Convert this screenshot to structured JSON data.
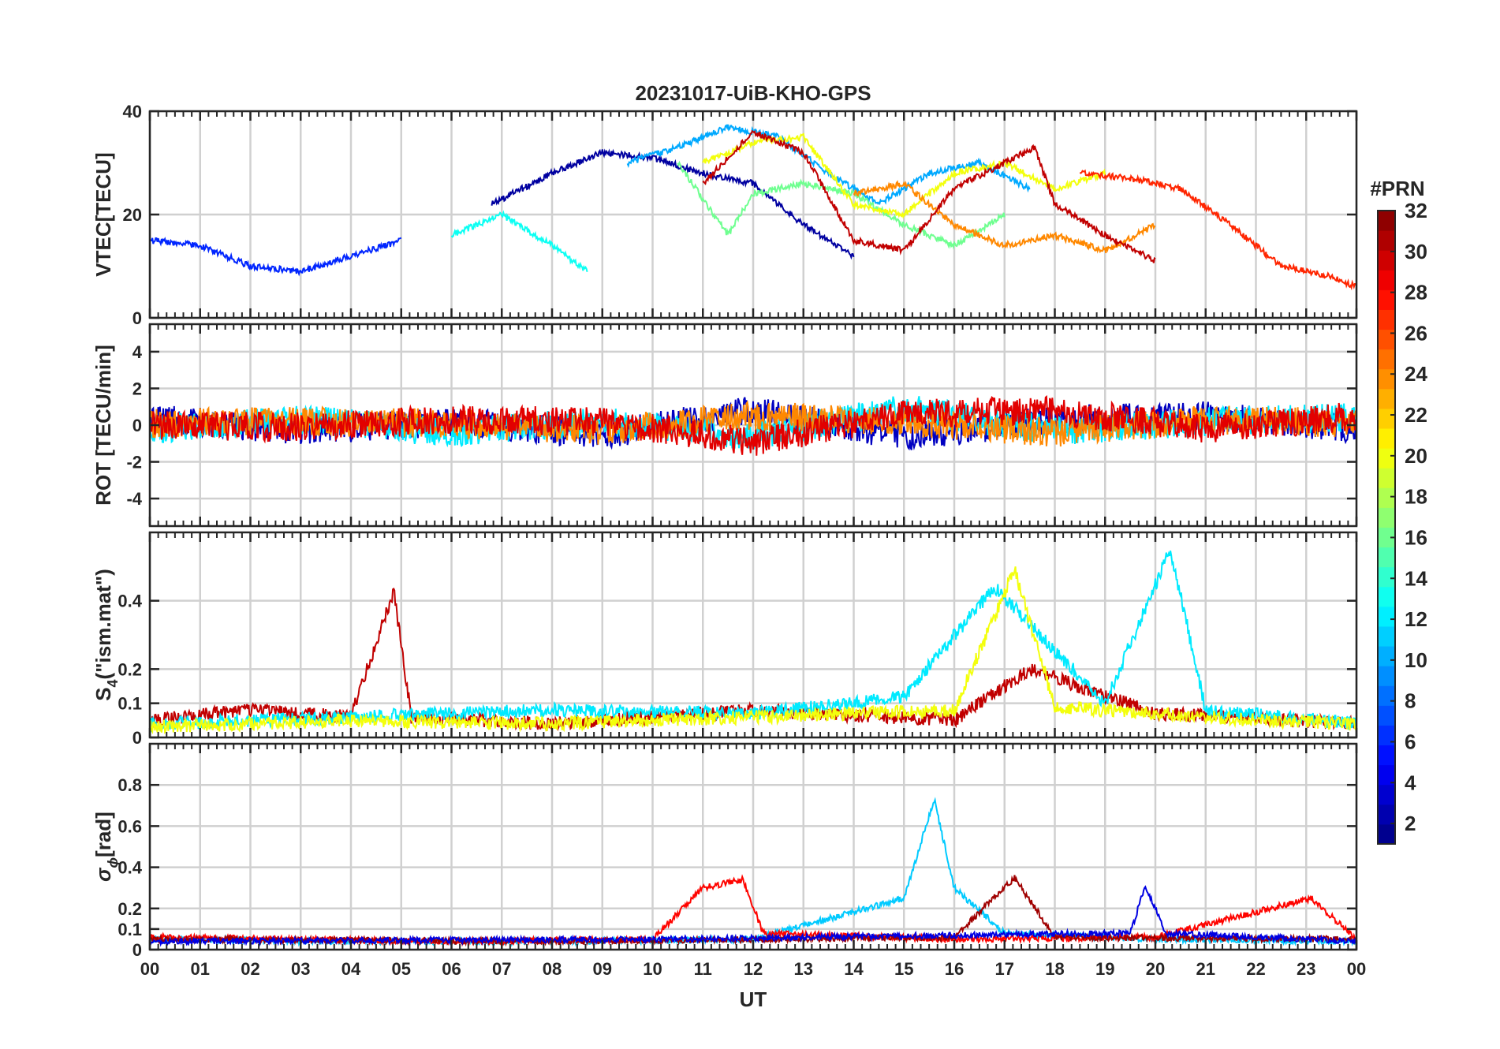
{
  "chart_data": [
    {
      "type": "line",
      "panel": "vtec",
      "title": "20231017-UiB-KHO-GPS",
      "xlabel": "",
      "ylabel": "VTEC[TECU]",
      "xlim": [
        0,
        24
      ],
      "ylim": [
        0,
        40
      ],
      "yticks": [
        0,
        20,
        40
      ],
      "tick_labels_y": [
        "0",
        "20",
        "40"
      ],
      "grid": true,
      "series": [
        {
          "name": "PRN 2",
          "prn": 2,
          "x": [
            6.8,
            8.0,
            9.0,
            10.0,
            11.0,
            12.0,
            13.0,
            14.0
          ],
          "values": [
            22,
            28,
            32,
            31,
            28,
            26,
            18,
            12
          ]
        },
        {
          "name": "PRN 6",
          "prn": 6,
          "x": [
            0.0,
            1.0,
            2.0,
            3.0,
            4.0,
            5.0
          ],
          "values": [
            15,
            14,
            10,
            9,
            12,
            15
          ]
        },
        {
          "name": "PRN 10",
          "prn": 10,
          "x": [
            9.5,
            10.5,
            11.5,
            12.5,
            13.5,
            14.5,
            15.5,
            16.5,
            17.5
          ],
          "values": [
            30,
            33,
            37,
            35,
            28,
            22,
            28,
            30,
            25
          ]
        },
        {
          "name": "PRN 13",
          "prn": 13,
          "x": [
            6.0,
            7.0,
            8.0,
            8.7
          ],
          "values": [
            16,
            20,
            14,
            9
          ]
        },
        {
          "name": "PRN 16",
          "prn": 16,
          "x": [
            10.5,
            11.5,
            12.0,
            13.0,
            14.0,
            15.0,
            16.0,
            17.0
          ],
          "values": [
            30,
            16,
            24,
            26,
            24,
            18,
            14,
            20
          ]
        },
        {
          "name": "PRN 20",
          "prn": 20,
          "x": [
            11.0,
            12.0,
            13.0,
            14.0,
            15.0,
            16.0,
            17.0,
            18.0,
            19.0
          ],
          "values": [
            30,
            34,
            35,
            22,
            20,
            28,
            30,
            25,
            28
          ]
        },
        {
          "name": "PRN 24",
          "prn": 24,
          "x": [
            14.0,
            15.0,
            16.0,
            17.0,
            18.0,
            19.0,
            20.0
          ],
          "values": [
            24,
            26,
            18,
            14,
            16,
            13,
            18
          ]
        },
        {
          "name": "PRN 27",
          "prn": 27,
          "x": [
            18.5,
            19.5,
            20.5,
            21.5,
            22.5,
            23.5,
            24.0
          ],
          "values": [
            28,
            27,
            25,
            18,
            10,
            8,
            6
          ]
        },
        {
          "name": "PRN 30",
          "prn": 30,
          "x": [
            11.0,
            12.0,
            13.0,
            14.0,
            15.0,
            16.0,
            17.0,
            17.6,
            18.0,
            19.0,
            20.0
          ],
          "values": [
            26,
            36,
            32,
            15,
            13,
            25,
            30,
            33,
            22,
            16,
            11
          ]
        }
      ]
    },
    {
      "type": "line",
      "panel": "rot",
      "xlabel": "",
      "ylabel": "ROT [TECU/min]",
      "xlim": [
        0,
        24
      ],
      "ylim": [
        -5.5,
        5.5
      ],
      "yticks": [
        -4,
        -2,
        0,
        2,
        4
      ],
      "tick_labels_y": [
        "-4",
        "-2",
        "0",
        "2",
        "4"
      ],
      "grid": true,
      "series": [
        {
          "name": "PRN 3",
          "prn": 3,
          "x": [
            0,
            3,
            6,
            9,
            12,
            15,
            18,
            21,
            24
          ],
          "values": [
            0.4,
            -0.3,
            0.2,
            -0.5,
            0.8,
            -0.6,
            0.3,
            0.5,
            -0.2
          ]
        },
        {
          "name": "PRN 12",
          "prn": 12,
          "x": [
            0,
            3,
            6,
            9,
            12,
            15,
            18,
            21,
            24
          ],
          "values": [
            -0.2,
            0.3,
            -0.4,
            0.2,
            -0.6,
            0.9,
            -0.3,
            0.2,
            0.4
          ]
        },
        {
          "name": "PRN 24",
          "prn": 24,
          "x": [
            0,
            3,
            6,
            9,
            12,
            15,
            18,
            21,
            24
          ],
          "values": [
            0.1,
            0.2,
            0.1,
            -0.3,
            0.5,
            0.2,
            -0.4,
            0.3,
            0.1
          ]
        },
        {
          "name": "PRN 29",
          "prn": 29,
          "x": [
            0,
            3,
            6,
            9,
            12,
            15,
            18,
            21,
            24
          ],
          "values": [
            0.0,
            -0.1,
            0.3,
            0.2,
            -0.9,
            0.6,
            0.8,
            -0.2,
            0.5
          ]
        }
      ]
    },
    {
      "type": "line",
      "panel": "s4",
      "xlabel": "",
      "ylabel": "S",
      "ylabel_subscript": "4",
      "ylabel_suffix": "(\"ism.mat\")",
      "xlim": [
        0,
        24
      ],
      "ylim": [
        0,
        0.6
      ],
      "yticks": [
        0,
        0.1,
        0.2,
        0.4
      ],
      "tick_labels_y": [
        "0",
        "0.1",
        "0.2",
        "0.4"
      ],
      "grid": true,
      "series": [
        {
          "name": "PRN 30",
          "prn": 30,
          "x": [
            0,
            2,
            4,
            4.85,
            5.2,
            8,
            12,
            16,
            17.5,
            20,
            24
          ],
          "values": [
            0.05,
            0.08,
            0.06,
            0.43,
            0.06,
            0.04,
            0.08,
            0.05,
            0.2,
            0.07,
            0.04
          ]
        },
        {
          "name": "PRN 12",
          "prn": 12,
          "x": [
            0,
            4,
            8,
            12,
            15,
            16.8,
            19,
            20.3,
            21,
            24
          ],
          "values": [
            0.04,
            0.06,
            0.08,
            0.07,
            0.12,
            0.44,
            0.1,
            0.55,
            0.08,
            0.04
          ]
        },
        {
          "name": "PRN 20",
          "prn": 20,
          "x": [
            0,
            4,
            8,
            12,
            16,
            17.2,
            18,
            22,
            24
          ],
          "values": [
            0.03,
            0.05,
            0.04,
            0.06,
            0.08,
            0.49,
            0.09,
            0.05,
            0.04
          ]
        }
      ]
    },
    {
      "type": "line",
      "panel": "sigma_phi",
      "xlabel": "UT",
      "ylabel": "σ",
      "ylabel_subscript": "ϕ",
      "ylabel_suffix": "[rad]",
      "xlim": [
        0,
        24
      ],
      "ylim": [
        0,
        1.0
      ],
      "yticks": [
        0,
        0.1,
        0.2,
        0.4,
        0.6,
        0.8
      ],
      "tick_labels_y": [
        "0",
        "0.1",
        "0.2",
        "0.4",
        "0.6",
        "0.8"
      ],
      "xticks": [
        0,
        1,
        2,
        3,
        4,
        5,
        6,
        7,
        8,
        9,
        10,
        11,
        12,
        13,
        14,
        15,
        16,
        17,
        18,
        19,
        20,
        21,
        22,
        23,
        24
      ],
      "tick_labels_x": [
        "00",
        "01",
        "02",
        "03",
        "04",
        "05",
        "06",
        "07",
        "08",
        "09",
        "10",
        "11",
        "12",
        "13",
        "14",
        "15",
        "16",
        "17",
        "18",
        "19",
        "20",
        "21",
        "22",
        "23",
        "00"
      ],
      "grid": true,
      "series": [
        {
          "name": "PRN 11",
          "prn": 11,
          "x": [
            0,
            4,
            8,
            12,
            15,
            15.6,
            16,
            17,
            20,
            24
          ],
          "values": [
            0.05,
            0.04,
            0.04,
            0.05,
            0.25,
            0.73,
            0.3,
            0.08,
            0.05,
            0.04
          ]
        },
        {
          "name": "PRN 28",
          "prn": 28,
          "x": [
            0,
            6,
            10,
            11,
            11.8,
            12.2,
            16,
            20,
            23.1,
            24
          ],
          "values": [
            0.06,
            0.04,
            0.05,
            0.3,
            0.34,
            0.08,
            0.05,
            0.06,
            0.25,
            0.05
          ]
        },
        {
          "name": "PRN 31",
          "prn": 31,
          "x": [
            0,
            8,
            16,
            17.2,
            18,
            24
          ],
          "values": [
            0.05,
            0.04,
            0.06,
            0.35,
            0.06,
            0.05
          ]
        },
        {
          "name": "PRN 4",
          "prn": 4,
          "x": [
            0,
            10,
            19.5,
            19.8,
            20.2,
            24
          ],
          "values": [
            0.04,
            0.05,
            0.08,
            0.31,
            0.08,
            0.04
          ]
        }
      ]
    }
  ],
  "colorbar": {
    "title": "#PRN",
    "range": [
      1,
      32
    ],
    "ticks": [
      "2",
      "4",
      "6",
      "8",
      "10",
      "12",
      "14",
      "16",
      "18",
      "20",
      "22",
      "24",
      "26",
      "28",
      "30",
      "32"
    ],
    "colormap": "jet"
  }
}
